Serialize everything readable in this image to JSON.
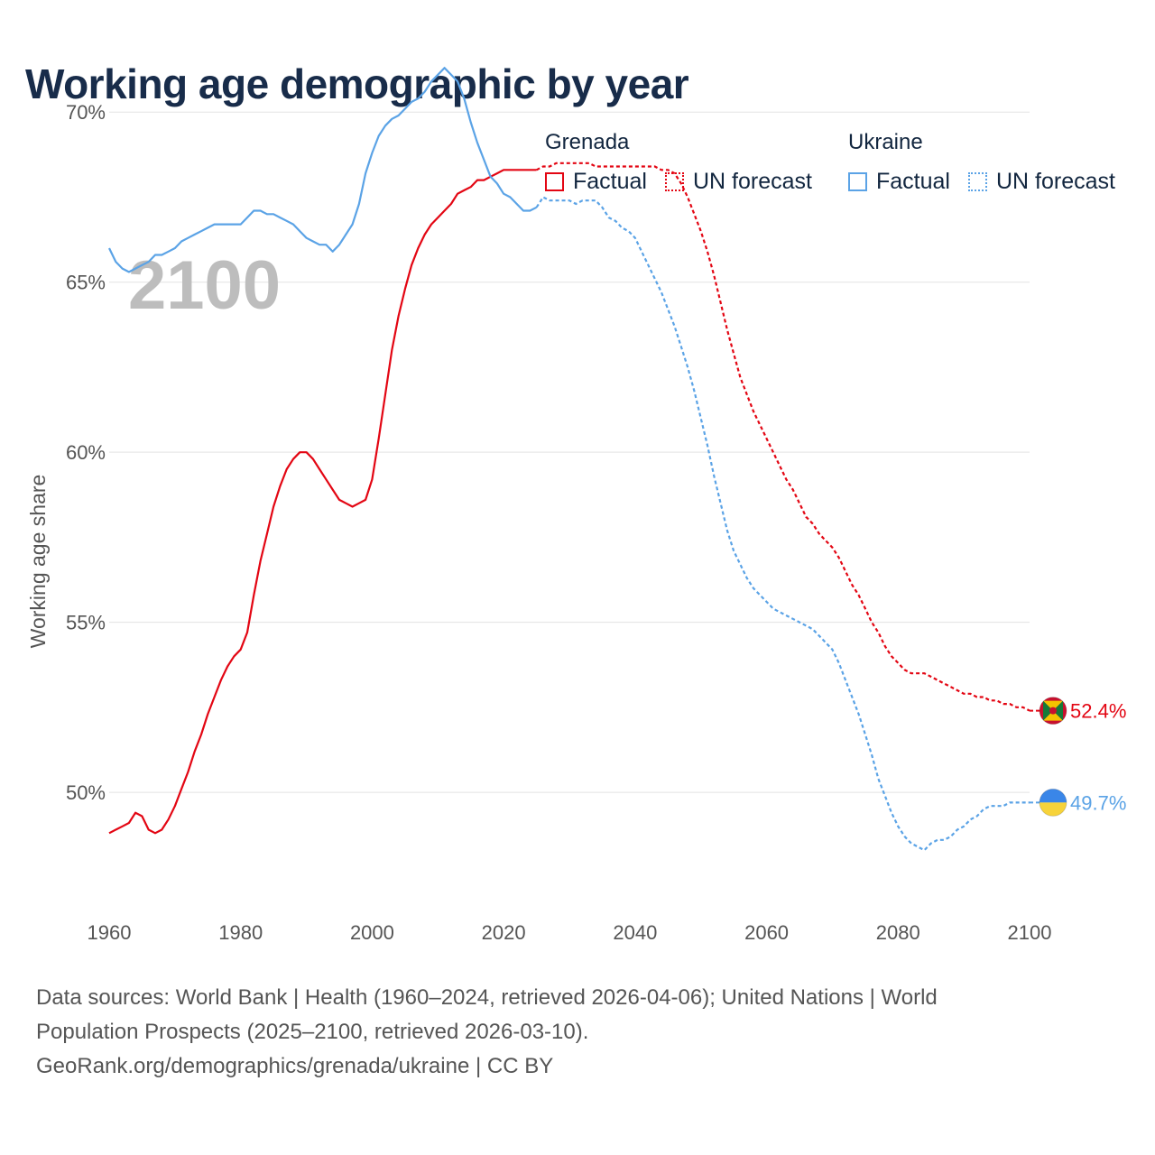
{
  "title": "Working age demographic by year",
  "legend": {
    "groups": [
      {
        "name": "Grenada",
        "factual_label": "Factual",
        "forecast_label": "UN forecast",
        "color": "#e30613"
      },
      {
        "name": "Ukraine",
        "factual_label": "Factual",
        "forecast_label": "UN forecast",
        "color": "#5ba3e6"
      }
    ]
  },
  "year_watermark": "2100",
  "footer": {
    "line1": "Data sources: World Bank | Health (1960–2024, retrieved 2026-04-06); United Nations | World",
    "line2": "Population Prospects (2025–2100, retrieved 2026-03-10).",
    "line3": "GeoRank.org/demographics/grenada/ukraine | CC BY"
  },
  "chart_data": {
    "type": "line",
    "title": "Working age demographic by year",
    "xlabel": "",
    "ylabel": "Working age share",
    "xlim": [
      1960,
      2100
    ],
    "ylim": [
      46.5,
      72.5
    ],
    "x_ticks": [
      1960,
      1980,
      2000,
      2020,
      2040,
      2060,
      2080,
      2100
    ],
    "x_tick_labels": [
      "1960",
      "1980",
      "2000",
      "2020",
      "2040",
      "2060",
      "2080",
      "2100"
    ],
    "y_ticks": [
      50,
      55,
      60,
      65,
      70
    ],
    "y_tick_labels": [
      "50%",
      "55%",
      "60%",
      "65%",
      "70%"
    ],
    "grid": true,
    "series": [
      {
        "name": "Grenada",
        "color": "#e30613",
        "end_label": "52.4%",
        "flag": "grenada-flag",
        "factual": {
          "x": [
            1960,
            1961,
            1962,
            1963,
            1964,
            1965,
            1966,
            1967,
            1968,
            1969,
            1970,
            1971,
            1972,
            1973,
            1974,
            1975,
            1976,
            1977,
            1978,
            1979,
            1980,
            1981,
            1982,
            1983,
            1984,
            1985,
            1986,
            1987,
            1988,
            1989,
            1990,
            1991,
            1992,
            1993,
            1994,
            1995,
            1996,
            1997,
            1998,
            1999,
            2000,
            2001,
            2002,
            2003,
            2004,
            2005,
            2006,
            2007,
            2008,
            2009,
            2010,
            2011,
            2012,
            2013,
            2014,
            2015,
            2016,
            2017,
            2018,
            2019,
            2020,
            2021,
            2022,
            2023,
            2024,
            2025
          ],
          "values": [
            48.8,
            48.9,
            49.0,
            49.1,
            49.4,
            49.3,
            48.9,
            48.8,
            48.9,
            49.2,
            49.6,
            50.1,
            50.6,
            51.2,
            51.7,
            52.3,
            52.8,
            53.3,
            53.7,
            54.0,
            54.2,
            54.7,
            55.8,
            56.8,
            57.6,
            58.4,
            59.0,
            59.5,
            59.8,
            60.0,
            60.0,
            59.8,
            59.5,
            59.2,
            58.9,
            58.6,
            58.5,
            58.4,
            58.5,
            58.6,
            59.2,
            60.4,
            61.7,
            63.0,
            64.0,
            64.8,
            65.5,
            66.0,
            66.4,
            66.7,
            66.9,
            67.1,
            67.3,
            67.6,
            67.7,
            67.8,
            68.0,
            68.0,
            68.1,
            68.2,
            68.3,
            68.3,
            68.3,
            68.3,
            68.3,
            68.3
          ]
        },
        "forecast": {
          "x": [
            2025,
            2026,
            2027,
            2028,
            2029,
            2030,
            2031,
            2032,
            2033,
            2034,
            2035,
            2036,
            2037,
            2038,
            2039,
            2040,
            2041,
            2042,
            2043,
            2044,
            2045,
            2046,
            2047,
            2048,
            2049,
            2050,
            2051,
            2052,
            2053,
            2054,
            2055,
            2056,
            2057,
            2058,
            2059,
            2060,
            2061,
            2062,
            2063,
            2064,
            2065,
            2066,
            2067,
            2068,
            2069,
            2070,
            2071,
            2072,
            2073,
            2074,
            2075,
            2076,
            2077,
            2078,
            2079,
            2080,
            2081,
            2082,
            2083,
            2084,
            2085,
            2086,
            2087,
            2088,
            2089,
            2090,
            2091,
            2092,
            2093,
            2094,
            2095,
            2096,
            2097,
            2098,
            2099,
            2100
          ],
          "values": [
            68.3,
            68.4,
            68.4,
            68.5,
            68.5,
            68.5,
            68.5,
            68.5,
            68.5,
            68.4,
            68.4,
            68.4,
            68.4,
            68.4,
            68.4,
            68.4,
            68.4,
            68.4,
            68.4,
            68.3,
            68.3,
            68.2,
            67.9,
            67.5,
            67.0,
            66.5,
            65.9,
            65.2,
            64.4,
            63.6,
            62.9,
            62.2,
            61.7,
            61.2,
            60.8,
            60.4,
            60.0,
            59.6,
            59.2,
            58.9,
            58.5,
            58.1,
            57.9,
            57.6,
            57.4,
            57.2,
            56.9,
            56.5,
            56.1,
            55.8,
            55.4,
            55.0,
            54.7,
            54.3,
            54.0,
            53.8,
            53.6,
            53.5,
            53.5,
            53.5,
            53.4,
            53.3,
            53.2,
            53.1,
            53.0,
            52.9,
            52.9,
            52.8,
            52.8,
            52.7,
            52.7,
            52.6,
            52.6,
            52.5,
            52.5,
            52.4
          ]
        }
      },
      {
        "name": "Ukraine",
        "color": "#5ba3e6",
        "end_label": "49.7%",
        "flag": "ukraine-flag",
        "factual": {
          "x": [
            1960,
            1961,
            1962,
            1963,
            1964,
            1965,
            1966,
            1967,
            1968,
            1969,
            1970,
            1971,
            1972,
            1973,
            1974,
            1975,
            1976,
            1977,
            1978,
            1979,
            1980,
            1981,
            1982,
            1983,
            1984,
            1985,
            1986,
            1987,
            1988,
            1989,
            1990,
            1991,
            1992,
            1993,
            1994,
            1995,
            1996,
            1997,
            1998,
            1999,
            2000,
            2001,
            2002,
            2003,
            2004,
            2005,
            2006,
            2007,
            2008,
            2009,
            2010,
            2011,
            2012,
            2013,
            2014,
            2015,
            2016,
            2017,
            2018,
            2019,
            2020,
            2021,
            2022,
            2023,
            2024,
            2025
          ],
          "values": [
            66.0,
            65.6,
            65.4,
            65.3,
            65.4,
            65.5,
            65.6,
            65.8,
            65.8,
            65.9,
            66.0,
            66.2,
            66.3,
            66.4,
            66.5,
            66.6,
            66.7,
            66.7,
            66.7,
            66.7,
            66.7,
            66.9,
            67.1,
            67.1,
            67.0,
            67.0,
            66.9,
            66.8,
            66.7,
            66.5,
            66.3,
            66.2,
            66.1,
            66.1,
            65.9,
            66.1,
            66.4,
            66.7,
            67.3,
            68.2,
            68.8,
            69.3,
            69.6,
            69.8,
            69.9,
            70.1,
            70.3,
            70.4,
            70.6,
            70.9,
            71.1,
            71.3,
            71.1,
            70.9,
            70.4,
            69.7,
            69.1,
            68.6,
            68.1,
            67.9,
            67.6,
            67.5,
            67.3,
            67.1,
            67.1,
            67.2
          ]
        },
        "forecast": {
          "x": [
            2025,
            2026,
            2027,
            2028,
            2029,
            2030,
            2031,
            2032,
            2033,
            2034,
            2035,
            2036,
            2037,
            2038,
            2039,
            2040,
            2041,
            2042,
            2043,
            2044,
            2045,
            2046,
            2047,
            2048,
            2049,
            2050,
            2051,
            2052,
            2053,
            2054,
            2055,
            2056,
            2057,
            2058,
            2059,
            2060,
            2061,
            2062,
            2063,
            2064,
            2065,
            2066,
            2067,
            2068,
            2069,
            2070,
            2071,
            2072,
            2073,
            2074,
            2075,
            2076,
            2077,
            2078,
            2079,
            2080,
            2081,
            2082,
            2083,
            2084,
            2085,
            2086,
            2087,
            2088,
            2089,
            2090,
            2091,
            2092,
            2093,
            2094,
            2095,
            2096,
            2097,
            2098,
            2099,
            2100
          ],
          "values": [
            67.2,
            67.5,
            67.4,
            67.4,
            67.4,
            67.4,
            67.3,
            67.4,
            67.4,
            67.4,
            67.2,
            66.9,
            66.8,
            66.6,
            66.5,
            66.3,
            65.9,
            65.5,
            65.1,
            64.7,
            64.2,
            63.7,
            63.1,
            62.5,
            61.8,
            61.0,
            60.2,
            59.3,
            58.5,
            57.7,
            57.1,
            56.7,
            56.3,
            56.0,
            55.8,
            55.6,
            55.4,
            55.3,
            55.2,
            55.1,
            55.0,
            54.9,
            54.8,
            54.6,
            54.4,
            54.2,
            53.8,
            53.3,
            52.8,
            52.3,
            51.7,
            51.1,
            50.4,
            49.9,
            49.4,
            49.0,
            48.7,
            48.5,
            48.4,
            48.3,
            48.5,
            48.6,
            48.6,
            48.7,
            48.9,
            49.0,
            49.2,
            49.3,
            49.5,
            49.6,
            49.6,
            49.6,
            49.7,
            49.7,
            49.7,
            49.7
          ]
        }
      }
    ]
  }
}
